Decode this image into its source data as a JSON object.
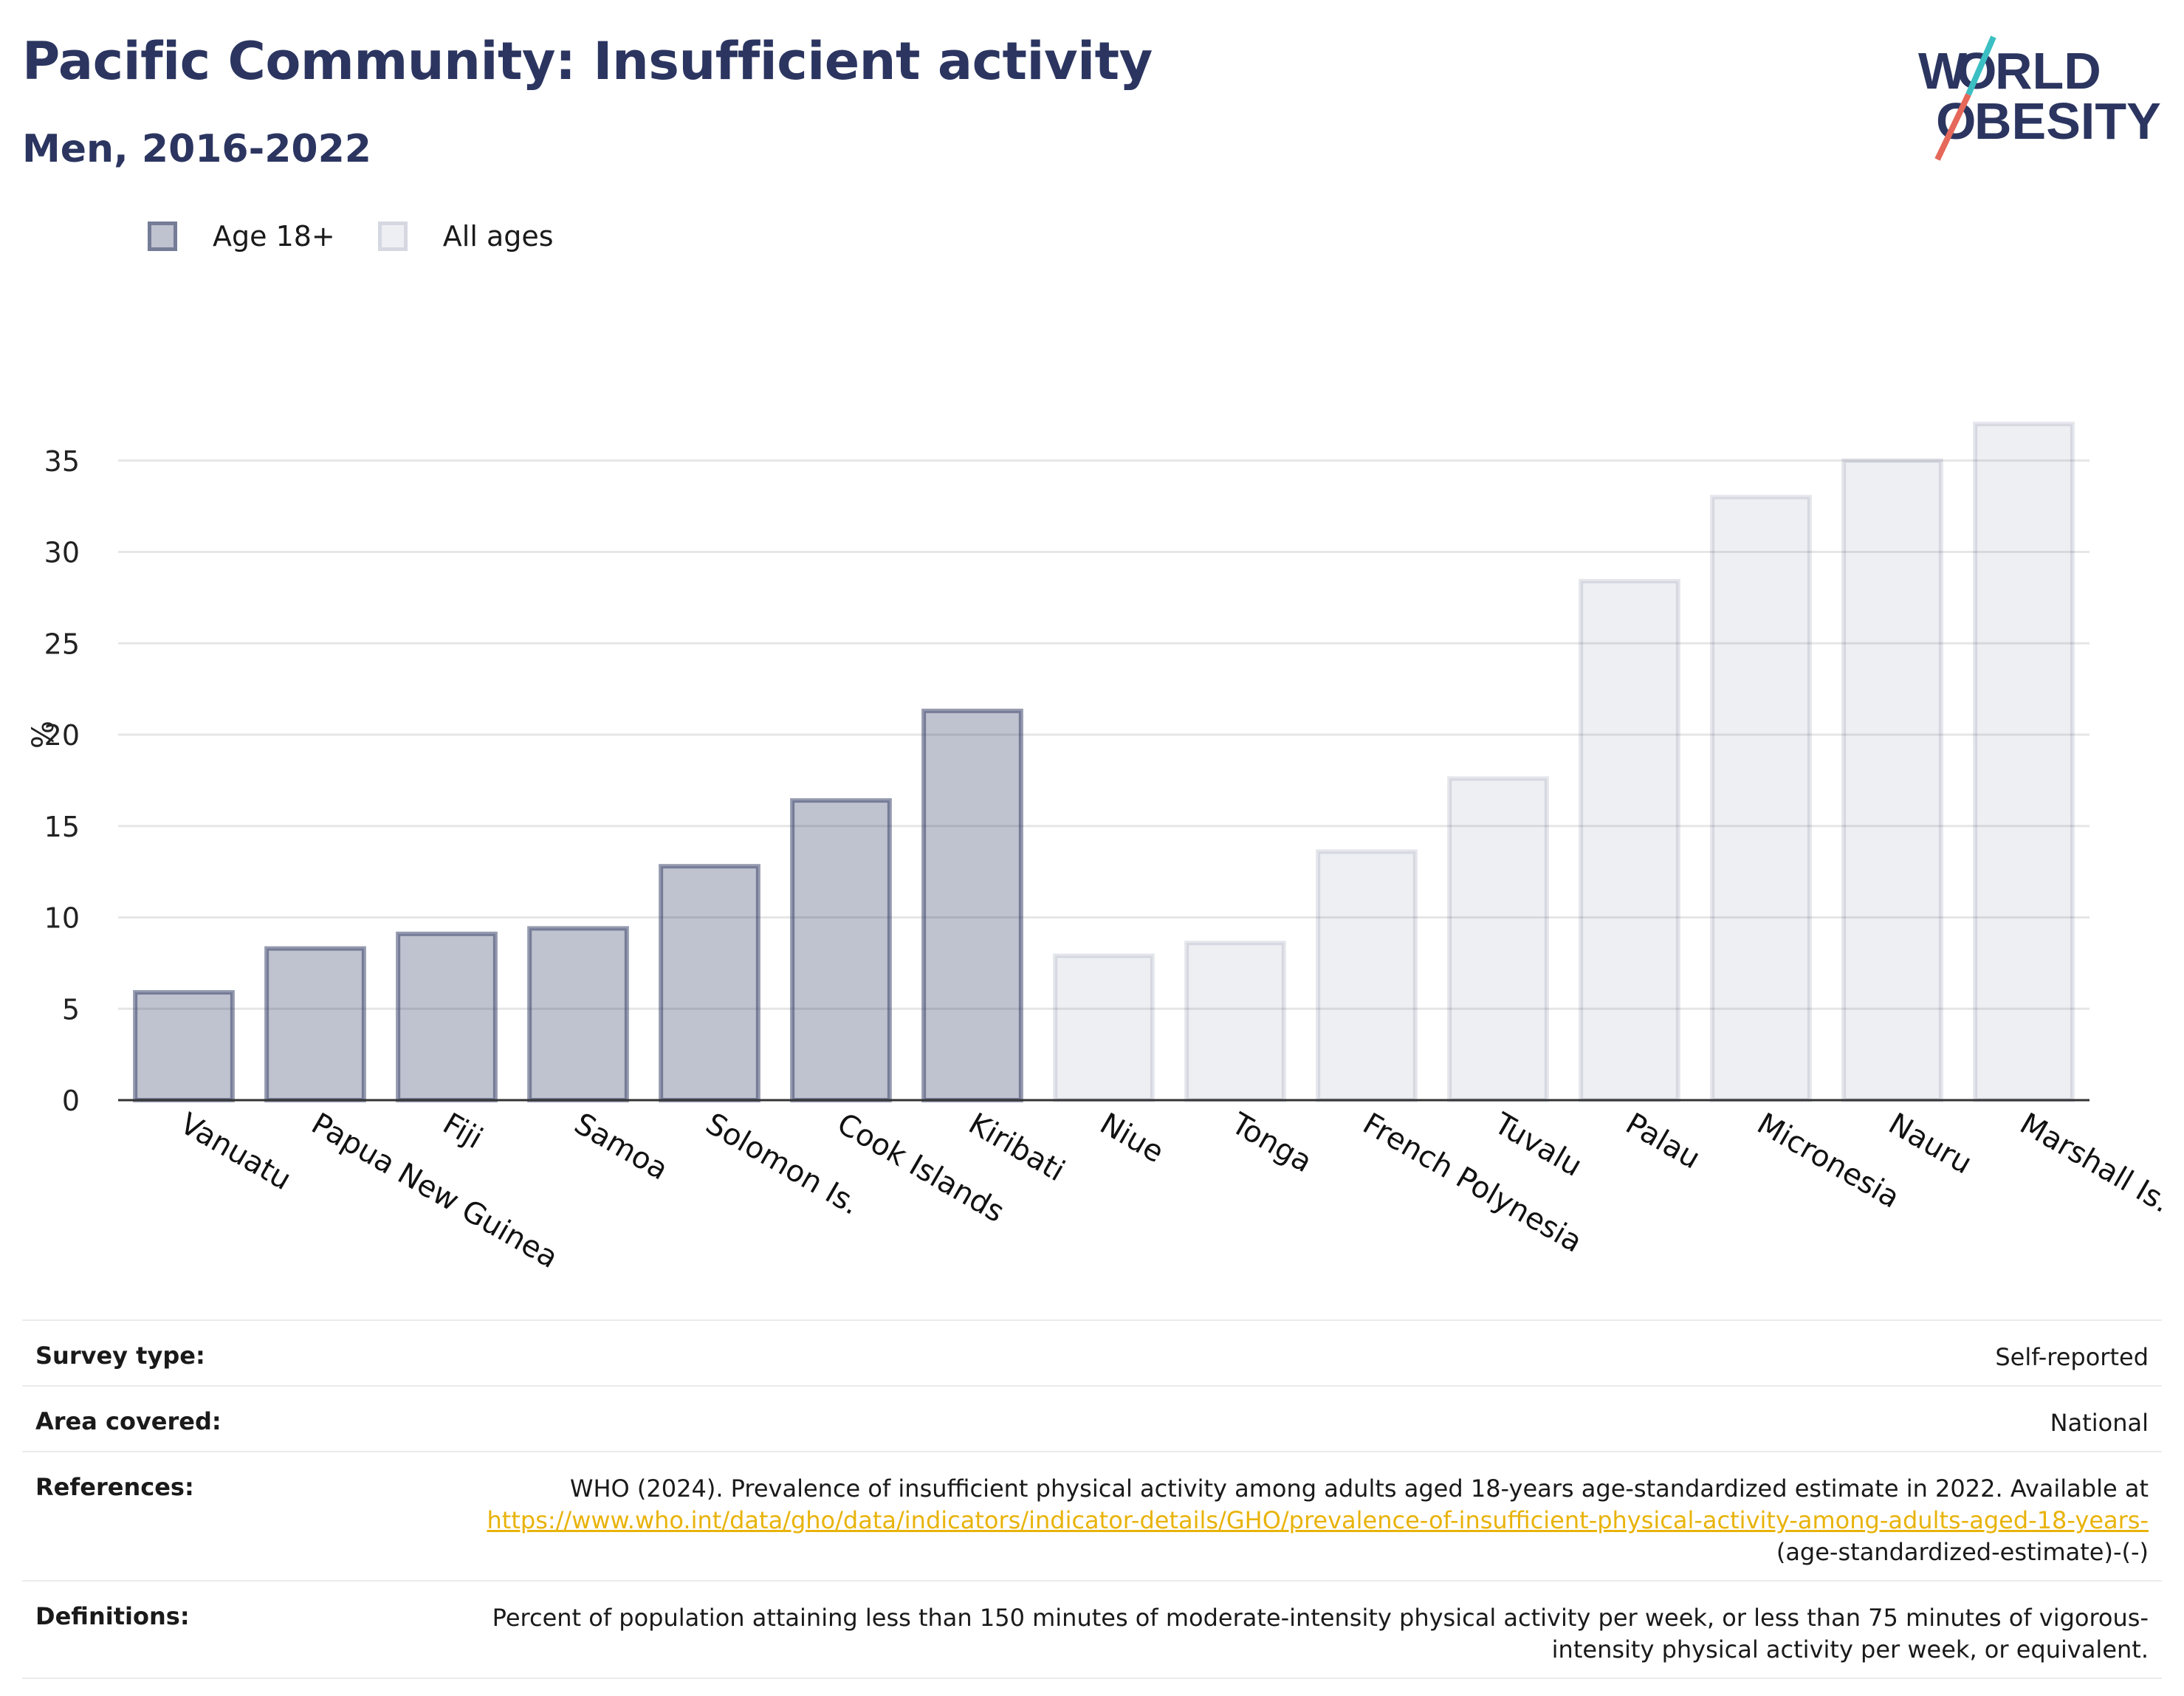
{
  "header": {
    "title": "Pacific Community: Insufficient activity",
    "subtitle": "Men, 2016-2022"
  },
  "logo": {
    "line1": "WORLD",
    "line2": "OBESITY"
  },
  "legend": [
    {
      "label": "Age 18+",
      "color": "#2b3560"
    },
    {
      "label": "All ages",
      "color": "#2b3560"
    }
  ],
  "chart_data": {
    "type": "bar",
    "title": "Pacific Community: Insufficient activity",
    "subtitle": "Men, 2016-2022",
    "ylabel": "%",
    "xlabel": "",
    "ylim": [
      0,
      40
    ],
    "yticks": [
      0,
      5,
      10,
      15,
      20,
      25,
      30,
      35
    ],
    "grid": true,
    "legend_position": "top-left",
    "categories": [
      "Vanuatu",
      "Papua New Guinea",
      "Fiji",
      "Samoa",
      "Solomon Is.",
      "Cook Islands",
      "Kiribati",
      "Niue",
      "Tonga",
      "French Polynesia",
      "Tuvalu",
      "Palau",
      "Micronesia",
      "Nauru",
      "Marshall Is."
    ],
    "values": [
      5.9,
      8.3,
      9.1,
      9.4,
      12.8,
      16.4,
      21.3,
      7.9,
      8.6,
      13.6,
      17.6,
      28.4,
      33,
      35,
      37
    ],
    "groups": [
      "Age 18+",
      "Age 18+",
      "Age 18+",
      "Age 18+",
      "Age 18+",
      "Age 18+",
      "Age 18+",
      "All ages",
      "All ages",
      "All ages",
      "All ages",
      "All ages",
      "All ages",
      "All ages",
      "All ages"
    ]
  },
  "metadata": {
    "survey_type": {
      "label": "Survey type:",
      "value": "Self-reported"
    },
    "area_covered": {
      "label": "Area covered:",
      "value": "National"
    },
    "references": {
      "label": "References:",
      "text": "WHO (2024). Prevalence of insufficient physical activity among adults aged 18-years age-standardized estimate in 2022. Available at",
      "link": "https://www.who.int/data/gho/data/indicators/indicator-details/GHO/prevalence-of-insufficient-physical-activity-among-adults-aged-18-years-",
      "suffix": "(age-standardized-estimate)-(-)"
    },
    "definitions": {
      "label": "Definitions:",
      "value": "Percent of population attaining less than 150 minutes of moderate-intensity physical activity per week, or less than 75 minutes of vigorous-intensity physical activity per week, or equivalent."
    }
  }
}
